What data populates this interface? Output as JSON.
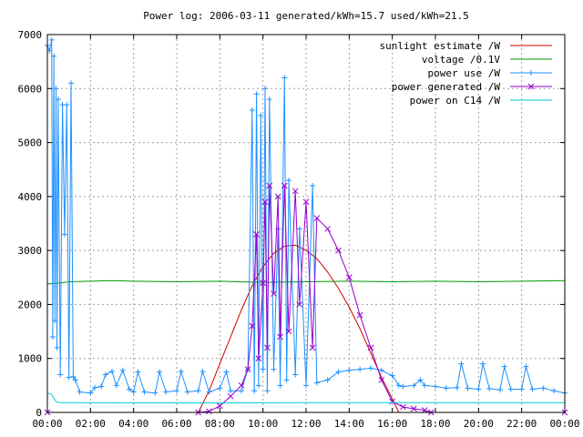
{
  "chart_data": {
    "type": "line",
    "title": "Power log: 2006-03-11 generated/kWh=15.7 used/kWh=21.5",
    "xlabel": "",
    "ylabel": "",
    "xlim": [
      0,
      24
    ],
    "ylim": [
      0,
      7000
    ],
    "x_ticks": [
      "00:00",
      "02:00",
      "04:00",
      "06:00",
      "08:00",
      "10:00",
      "12:00",
      "14:00",
      "16:00",
      "18:00",
      "20:00",
      "22:00",
      "00:00"
    ],
    "y_ticks": [
      "0",
      "1000",
      "2000",
      "3000",
      "4000",
      "5000",
      "6000",
      "7000"
    ],
    "grid": true,
    "legend_position": "top-right",
    "series": [
      {
        "name": "sunlight estimate /W",
        "color": "#cc0000",
        "marker": "none",
        "points": [
          [
            0,
            0
          ],
          [
            7,
            0
          ],
          [
            7.5,
            400
          ],
          [
            8,
            900
          ],
          [
            8.5,
            1400
          ],
          [
            9,
            1900
          ],
          [
            9.5,
            2350
          ],
          [
            10,
            2700
          ],
          [
            10.5,
            2950
          ],
          [
            11,
            3080
          ],
          [
            11.5,
            3100
          ],
          [
            12,
            3000
          ],
          [
            12.5,
            2850
          ],
          [
            13,
            2600
          ],
          [
            13.5,
            2300
          ],
          [
            14,
            1950
          ],
          [
            14.5,
            1550
          ],
          [
            15,
            1100
          ],
          [
            15.5,
            650
          ],
          [
            16,
            250
          ],
          [
            16.3,
            0
          ],
          [
            24,
            0
          ]
        ]
      },
      {
        "name": "voltage /0.1V",
        "color": "#009900",
        "marker": "none",
        "points": [
          [
            0,
            2380
          ],
          [
            0.6,
            2400
          ],
          [
            1,
            2420
          ],
          [
            3,
            2440
          ],
          [
            4,
            2430
          ],
          [
            6,
            2420
          ],
          [
            8,
            2430
          ],
          [
            10,
            2410
          ],
          [
            12,
            2420
          ],
          [
            14,
            2430
          ],
          [
            16,
            2420
          ],
          [
            18,
            2430
          ],
          [
            20,
            2420
          ],
          [
            22,
            2430
          ],
          [
            24,
            2440
          ]
        ]
      },
      {
        "name": "power use /W",
        "color": "#1e90ff",
        "marker": "+",
        "points": [
          [
            0,
            6800
          ],
          [
            0.1,
            6700
          ],
          [
            0.2,
            6900
          ],
          [
            0.25,
            1400
          ],
          [
            0.3,
            6600
          ],
          [
            0.35,
            1700
          ],
          [
            0.4,
            6000
          ],
          [
            0.45,
            1200
          ],
          [
            0.5,
            5800
          ],
          [
            0.6,
            700
          ],
          [
            0.7,
            5700
          ],
          [
            0.8,
            3300
          ],
          [
            0.9,
            5700
          ],
          [
            1,
            650
          ],
          [
            1.1,
            6100
          ],
          [
            1.2,
            660
          ],
          [
            1.3,
            600
          ],
          [
            1.5,
            380
          ],
          [
            2,
            360
          ],
          [
            2.2,
            460
          ],
          [
            2.5,
            480
          ],
          [
            2.7,
            700
          ],
          [
            3,
            760
          ],
          [
            3.2,
            500
          ],
          [
            3.5,
            780
          ],
          [
            3.8,
            430
          ],
          [
            4,
            380
          ],
          [
            4.2,
            750
          ],
          [
            4.5,
            380
          ],
          [
            5,
            360
          ],
          [
            5.2,
            750
          ],
          [
            5.5,
            380
          ],
          [
            6,
            400
          ],
          [
            6.2,
            760
          ],
          [
            6.5,
            380
          ],
          [
            7,
            400
          ],
          [
            7.2,
            760
          ],
          [
            7.5,
            380
          ],
          [
            8,
            450
          ],
          [
            8.3,
            750
          ],
          [
            8.5,
            400
          ],
          [
            9,
            400
          ],
          [
            9.3,
            800
          ],
          [
            9.5,
            5600
          ],
          [
            9.6,
            400
          ],
          [
            9.7,
            5900
          ],
          [
            9.8,
            500
          ],
          [
            9.9,
            5500
          ],
          [
            10,
            800
          ],
          [
            10.1,
            6000
          ],
          [
            10.2,
            400
          ],
          [
            10.3,
            5800
          ],
          [
            10.5,
            800
          ],
          [
            10.7,
            3400
          ],
          [
            10.8,
            500
          ],
          [
            11,
            6200
          ],
          [
            11.1,
            600
          ],
          [
            11.2,
            4300
          ],
          [
            11.5,
            700
          ],
          [
            11.7,
            3400
          ],
          [
            12,
            500
          ],
          [
            12.3,
            4200
          ],
          [
            12.5,
            550
          ],
          [
            13,
            600
          ],
          [
            13.5,
            750
          ],
          [
            14,
            780
          ],
          [
            14.5,
            800
          ],
          [
            15,
            820
          ],
          [
            15.5,
            780
          ],
          [
            16,
            680
          ],
          [
            16.3,
            500
          ],
          [
            16.5,
            480
          ],
          [
            17,
            500
          ],
          [
            17.3,
            600
          ],
          [
            17.5,
            500
          ],
          [
            18,
            480
          ],
          [
            18.5,
            450
          ],
          [
            19,
            460
          ],
          [
            19.2,
            900
          ],
          [
            19.5,
            450
          ],
          [
            20,
            430
          ],
          [
            20.2,
            900
          ],
          [
            20.5,
            440
          ],
          [
            21,
            420
          ],
          [
            21.2,
            850
          ],
          [
            21.5,
            430
          ],
          [
            22,
            430
          ],
          [
            22.2,
            850
          ],
          [
            22.5,
            430
          ],
          [
            23,
            450
          ],
          [
            23.5,
            400
          ],
          [
            24,
            360
          ]
        ]
      },
      {
        "name": "power generated /W",
        "color": "#9900cc",
        "marker": "x",
        "points": [
          [
            0,
            0
          ],
          [
            7,
            0
          ],
          [
            7.5,
            20
          ],
          [
            8,
            120
          ],
          [
            8.5,
            300
          ],
          [
            9,
            500
          ],
          [
            9.3,
            800
          ],
          [
            9.5,
            1600
          ],
          [
            9.7,
            3300
          ],
          [
            9.8,
            1000
          ],
          [
            10,
            2400
          ],
          [
            10.1,
            3900
          ],
          [
            10.2,
            1200
          ],
          [
            10.3,
            4200
          ],
          [
            10.5,
            2200
          ],
          [
            10.7,
            4000
          ],
          [
            10.8,
            1400
          ],
          [
            11,
            4200
          ],
          [
            11.2,
            1500
          ],
          [
            11.5,
            4100
          ],
          [
            11.7,
            2000
          ],
          [
            12,
            3900
          ],
          [
            12.3,
            1200
          ],
          [
            12.5,
            3600
          ],
          [
            13,
            3400
          ],
          [
            13.5,
            3000
          ],
          [
            14,
            2500
          ],
          [
            14.5,
            1800
          ],
          [
            15,
            1200
          ],
          [
            15.5,
            600
          ],
          [
            16,
            200
          ],
          [
            16.5,
            100
          ],
          [
            17,
            70
          ],
          [
            17.5,
            40
          ],
          [
            17.8,
            0
          ],
          [
            24,
            0
          ]
        ]
      },
      {
        "name": "power on C14 /W",
        "color": "#00cccc",
        "marker": "none",
        "points": [
          [
            0,
            360
          ],
          [
            0.2,
            330
          ],
          [
            0.4,
            200
          ],
          [
            0.6,
            180
          ],
          [
            8,
            175
          ],
          [
            12,
            180
          ],
          [
            16,
            180
          ],
          [
            24,
            180
          ]
        ]
      }
    ]
  }
}
